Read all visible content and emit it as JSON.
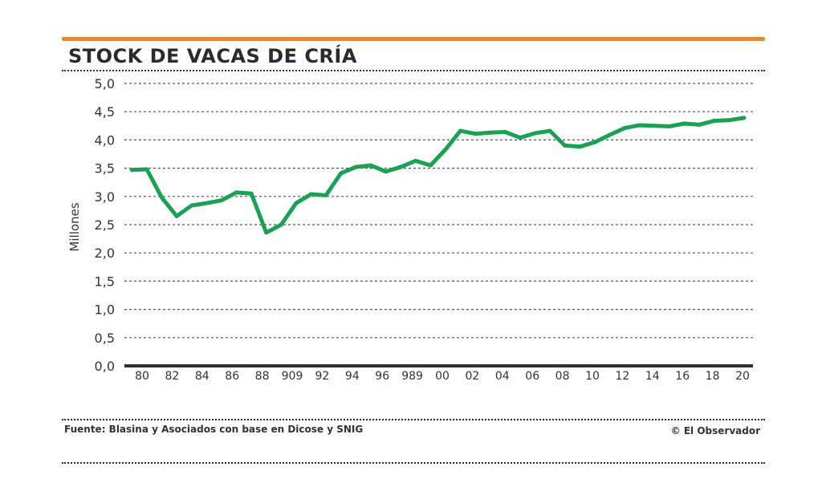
{
  "header": {
    "title": "STOCK DE VACAS DE CRÍA"
  },
  "footer": {
    "source": "Fuente: Blasina y Asociados con base en Dicose y SNIG",
    "credit": "© El Observador"
  },
  "colors": {
    "accent_rule": "#e08a3c",
    "line": "#1aa154",
    "grid": "#555555",
    "baseline": "#3a2a2a"
  },
  "chart_data": {
    "type": "line",
    "title": "STOCK DE VACAS DE CRÍA",
    "xlabel": "",
    "ylabel": "Millones",
    "ylim": [
      0,
      5
    ],
    "yticks": [
      "0,0",
      "0,5",
      "1,0",
      "1,5",
      "2,0",
      "2,5",
      "3,0",
      "3,5",
      "4,0",
      "4,5",
      "5,0"
    ],
    "xticks": [
      "80",
      "82",
      "84",
      "86",
      "88",
      "909",
      "92",
      "94",
      "96",
      "989",
      "00",
      "02",
      "04",
      "06",
      "08",
      "10",
      "12",
      "14",
      "16",
      "18",
      "20"
    ],
    "grid": true,
    "series": [
      {
        "x": [
          1979,
          1980,
          1981,
          1982,
          1983,
          1984,
          1985,
          1986,
          1987,
          1988,
          1989,
          1990,
          1991,
          1992,
          1993,
          1994,
          1995,
          1996,
          1997,
          1998,
          1999,
          2000,
          2001,
          2002,
          2003,
          2004,
          2005,
          2006,
          2007,
          2008,
          2009,
          2010,
          2011,
          2012,
          2013,
          2014,
          2015,
          2016,
          2017,
          2018,
          2019,
          2020
        ],
        "values": [
          3.47,
          3.48,
          2.98,
          2.65,
          2.84,
          2.88,
          2.93,
          3.07,
          3.05,
          2.36,
          2.5,
          2.88,
          3.04,
          3.02,
          3.41,
          3.52,
          3.55,
          3.44,
          3.52,
          3.63,
          3.55,
          3.83,
          4.16,
          4.11,
          4.13,
          4.14,
          4.04,
          4.12,
          4.16,
          3.9,
          3.88,
          3.96,
          4.09,
          4.21,
          4.26,
          4.25,
          4.24,
          4.29,
          4.27,
          4.34,
          4.35,
          4.39
        ]
      }
    ]
  }
}
